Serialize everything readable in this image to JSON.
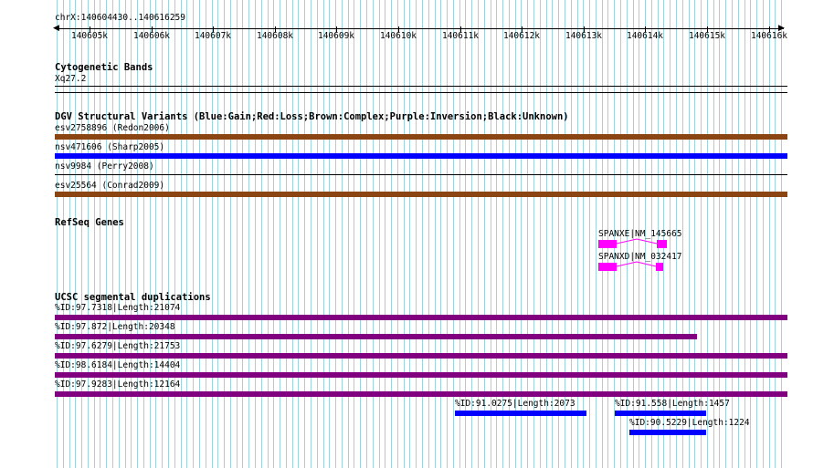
{
  "ruler": {
    "region_label": "chrX:140604430..140616259",
    "ticks": [
      "140605k",
      "140606k",
      "140607k",
      "140608k",
      "140609k",
      "140610k",
      "140611k",
      "140612k",
      "140613k",
      "140614k",
      "140615k",
      "140616k"
    ]
  },
  "tracks": {
    "cytoband": {
      "title": "Cytogenetic Bands",
      "band": "Xq27.2"
    },
    "dgv": {
      "title": "DGV Structural Variants (Blue:Gain;Red:Loss;Brown:Complex;Purple:Inversion;Black:Unknown)",
      "features": [
        {
          "label": "esv2758896 (Redon2006)",
          "color": "#8B4513"
        },
        {
          "label": "nsv471606 (Sharp2005)",
          "color": "#0000FF"
        },
        {
          "label": "nsv9984 (Perry2008)",
          "color": "#000000"
        },
        {
          "label": "esv25564 (Conrad2009)",
          "color": "#8B4513"
        }
      ]
    },
    "refseq": {
      "title": "RefSeq Genes",
      "exon_color": "#FF00FF",
      "genes": [
        {
          "label": "SPANXE|NM_145665"
        },
        {
          "label": "SPANXD|NM_032417"
        }
      ]
    },
    "segdup": {
      "title": "UCSC segmental duplications",
      "purple": "#800080",
      "blue": "#0000FF",
      "features": [
        {
          "label": "%ID:97.7318|Length:21074"
        },
        {
          "label": "%ID:97.872|Length:20348"
        },
        {
          "label": "%ID:97.6279|Length:21753"
        },
        {
          "label": "%ID:98.6184|Length:14404"
        },
        {
          "label": "%ID:97.9283|Length:12164"
        },
        {
          "label": "%ID:91.0275|Length:2073"
        },
        {
          "label": "%ID:91.558|Length:1457"
        },
        {
          "label": "%ID:90.5229|Length:1224"
        }
      ]
    }
  },
  "colors": {
    "grid_line": "#9fd4dc",
    "background": "#ffffff"
  }
}
